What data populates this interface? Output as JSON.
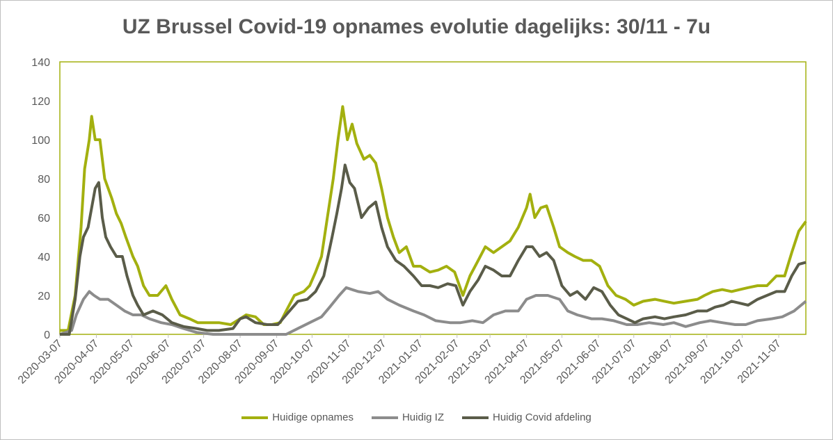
{
  "chart_data": {
    "type": "line",
    "title": "UZ Brussel Covid-19 opnames evolutie dagelijks: 30/11 - 7u",
    "ylim": [
      0,
      140
    ],
    "y_ticks": [
      0,
      20,
      40,
      60,
      80,
      100,
      120,
      140
    ],
    "x_ticks": [
      "2020-03-07",
      "2020-04-07",
      "2020-05-07",
      "2020-06-07",
      "2020-07-07",
      "2020-08-07",
      "2020-09-07",
      "2020-10-07",
      "2020-11-07",
      "2020-12-07",
      "2021-01-07",
      "2021-02-07",
      "2021-03-07",
      "2021-04-07",
      "2021-05-07",
      "2021-06-07",
      "2021-07-07",
      "2021-08-07",
      "2021-09-07",
      "2021-10-07",
      "2021-11-07"
    ],
    "x_range": [
      "2020-03-07",
      "2021-11-30"
    ],
    "legend_position": "bottom",
    "series": [
      {
        "name": "Huidige opnames",
        "color": "#a3b00f",
        "points": [
          [
            "2020-03-07",
            2
          ],
          [
            "2020-03-14",
            2
          ],
          [
            "2020-03-20",
            20
          ],
          [
            "2020-03-25",
            55
          ],
          [
            "2020-03-28",
            85
          ],
          [
            "2020-04-01",
            100
          ],
          [
            "2020-04-03",
            112
          ],
          [
            "2020-04-06",
            100
          ],
          [
            "2020-04-10",
            100
          ],
          [
            "2020-04-14",
            80
          ],
          [
            "2020-04-20",
            70
          ],
          [
            "2020-04-24",
            62
          ],
          [
            "2020-04-28",
            57
          ],
          [
            "2020-05-02",
            50
          ],
          [
            "2020-05-08",
            40
          ],
          [
            "2020-05-12",
            35
          ],
          [
            "2020-05-17",
            25
          ],
          [
            "2020-05-22",
            20
          ],
          [
            "2020-05-29",
            20
          ],
          [
            "2020-06-05",
            25
          ],
          [
            "2020-06-10",
            18
          ],
          [
            "2020-06-17",
            10
          ],
          [
            "2020-06-25",
            8
          ],
          [
            "2020-07-02",
            6
          ],
          [
            "2020-07-10",
            6
          ],
          [
            "2020-07-20",
            6
          ],
          [
            "2020-07-30",
            5
          ],
          [
            "2020-08-07",
            8
          ],
          [
            "2020-08-12",
            10
          ],
          [
            "2020-08-20",
            9
          ],
          [
            "2020-08-27",
            5
          ],
          [
            "2020-09-03",
            5
          ],
          [
            "2020-09-10",
            6
          ],
          [
            "2020-09-15",
            12
          ],
          [
            "2020-09-22",
            20
          ],
          [
            "2020-09-30",
            22
          ],
          [
            "2020-10-05",
            25
          ],
          [
            "2020-10-10",
            32
          ],
          [
            "2020-10-15",
            40
          ],
          [
            "2020-10-20",
            60
          ],
          [
            "2020-10-25",
            80
          ],
          [
            "2020-10-29",
            100
          ],
          [
            "2020-11-02",
            117
          ],
          [
            "2020-11-06",
            100
          ],
          [
            "2020-11-10",
            108
          ],
          [
            "2020-11-14",
            98
          ],
          [
            "2020-11-20",
            90
          ],
          [
            "2020-11-25",
            92
          ],
          [
            "2020-11-30",
            88
          ],
          [
            "2020-12-05",
            75
          ],
          [
            "2020-12-10",
            60
          ],
          [
            "2020-12-15",
            50
          ],
          [
            "2020-12-20",
            42
          ],
          [
            "2020-12-26",
            45
          ],
          [
            "2021-01-01",
            35
          ],
          [
            "2021-01-07",
            35
          ],
          [
            "2021-01-15",
            32
          ],
          [
            "2021-01-22",
            33
          ],
          [
            "2021-01-29",
            35
          ],
          [
            "2021-02-05",
            32
          ],
          [
            "2021-02-12",
            20
          ],
          [
            "2021-02-18",
            30
          ],
          [
            "2021-02-25",
            38
          ],
          [
            "2021-03-03",
            45
          ],
          [
            "2021-03-10",
            42
          ],
          [
            "2021-03-17",
            45
          ],
          [
            "2021-03-24",
            48
          ],
          [
            "2021-03-31",
            55
          ],
          [
            "2021-04-07",
            65
          ],
          [
            "2021-04-10",
            72
          ],
          [
            "2021-04-14",
            60
          ],
          [
            "2021-04-19",
            65
          ],
          [
            "2021-04-24",
            66
          ],
          [
            "2021-04-30",
            55
          ],
          [
            "2021-05-05",
            45
          ],
          [
            "2021-05-12",
            42
          ],
          [
            "2021-05-18",
            40
          ],
          [
            "2021-05-25",
            38
          ],
          [
            "2021-06-01",
            38
          ],
          [
            "2021-06-08",
            35
          ],
          [
            "2021-06-15",
            25
          ],
          [
            "2021-06-22",
            20
          ],
          [
            "2021-06-30",
            18
          ],
          [
            "2021-07-07",
            15
          ],
          [
            "2021-07-15",
            17
          ],
          [
            "2021-07-25",
            18
          ],
          [
            "2021-08-02",
            17
          ],
          [
            "2021-08-10",
            16
          ],
          [
            "2021-08-20",
            17
          ],
          [
            "2021-08-30",
            18
          ],
          [
            "2021-09-05",
            20
          ],
          [
            "2021-09-12",
            22
          ],
          [
            "2021-09-20",
            23
          ],
          [
            "2021-09-28",
            22
          ],
          [
            "2021-10-05",
            23
          ],
          [
            "2021-10-12",
            24
          ],
          [
            "2021-10-20",
            25
          ],
          [
            "2021-10-28",
            25
          ],
          [
            "2021-11-05",
            30
          ],
          [
            "2021-11-12",
            30
          ],
          [
            "2021-11-18",
            42
          ],
          [
            "2021-11-24",
            53
          ],
          [
            "2021-11-30",
            58
          ]
        ]
      },
      {
        "name": "Huidig IZ",
        "color": "#8c8c8c",
        "points": [
          [
            "2020-03-07",
            0
          ],
          [
            "2020-03-17",
            2
          ],
          [
            "2020-03-21",
            10
          ],
          [
            "2020-03-27",
            18
          ],
          [
            "2020-04-01",
            22
          ],
          [
            "2020-04-05",
            20
          ],
          [
            "2020-04-10",
            18
          ],
          [
            "2020-04-17",
            18
          ],
          [
            "2020-04-24",
            15
          ],
          [
            "2020-05-01",
            12
          ],
          [
            "2020-05-08",
            10
          ],
          [
            "2020-05-15",
            10
          ],
          [
            "2020-05-22",
            8
          ],
          [
            "2020-06-01",
            6
          ],
          [
            "2020-06-10",
            5
          ],
          [
            "2020-06-20",
            3
          ],
          [
            "2020-07-01",
            1
          ],
          [
            "2020-07-15",
            0
          ],
          [
            "2020-08-01",
            0
          ],
          [
            "2020-08-15",
            0
          ],
          [
            "2020-09-01",
            0
          ],
          [
            "2020-09-15",
            0
          ],
          [
            "2020-09-25",
            3
          ],
          [
            "2020-10-05",
            6
          ],
          [
            "2020-10-15",
            9
          ],
          [
            "2020-10-22",
            14
          ],
          [
            "2020-10-30",
            20
          ],
          [
            "2020-11-05",
            24
          ],
          [
            "2020-11-15",
            22
          ],
          [
            "2020-11-25",
            21
          ],
          [
            "2020-12-02",
            22
          ],
          [
            "2020-12-10",
            18
          ],
          [
            "2020-12-20",
            15
          ],
          [
            "2021-01-01",
            12
          ],
          [
            "2021-01-10",
            10
          ],
          [
            "2021-01-20",
            7
          ],
          [
            "2021-02-01",
            6
          ],
          [
            "2021-02-10",
            6
          ],
          [
            "2021-02-20",
            7
          ],
          [
            "2021-03-01",
            6
          ],
          [
            "2021-03-10",
            10
          ],
          [
            "2021-03-20",
            12
          ],
          [
            "2021-03-31",
            12
          ],
          [
            "2021-04-07",
            18
          ],
          [
            "2021-04-15",
            20
          ],
          [
            "2021-04-25",
            20
          ],
          [
            "2021-05-05",
            18
          ],
          [
            "2021-05-12",
            12
          ],
          [
            "2021-05-20",
            10
          ],
          [
            "2021-06-01",
            8
          ],
          [
            "2021-06-10",
            8
          ],
          [
            "2021-06-20",
            7
          ],
          [
            "2021-07-01",
            5
          ],
          [
            "2021-07-10",
            5
          ],
          [
            "2021-07-20",
            6
          ],
          [
            "2021-08-01",
            5
          ],
          [
            "2021-08-10",
            6
          ],
          [
            "2021-08-20",
            4
          ],
          [
            "2021-09-01",
            6
          ],
          [
            "2021-09-10",
            7
          ],
          [
            "2021-09-20",
            6
          ],
          [
            "2021-10-01",
            5
          ],
          [
            "2021-10-10",
            5
          ],
          [
            "2021-10-20",
            7
          ],
          [
            "2021-11-01",
            8
          ],
          [
            "2021-11-10",
            9
          ],
          [
            "2021-11-20",
            12
          ],
          [
            "2021-11-30",
            17
          ]
        ]
      },
      {
        "name": "Huidig Covid afdeling",
        "color": "#5a5c49",
        "points": [
          [
            "2020-03-07",
            0
          ],
          [
            "2020-03-15",
            0
          ],
          [
            "2020-03-20",
            18
          ],
          [
            "2020-03-24",
            40
          ],
          [
            "2020-03-27",
            50
          ],
          [
            "2020-03-31",
            55
          ],
          [
            "2020-04-03",
            65
          ],
          [
            "2020-04-06",
            75
          ],
          [
            "2020-04-09",
            78
          ],
          [
            "2020-04-12",
            60
          ],
          [
            "2020-04-15",
            50
          ],
          [
            "2020-04-19",
            45
          ],
          [
            "2020-04-24",
            40
          ],
          [
            "2020-04-29",
            40
          ],
          [
            "2020-05-03",
            30
          ],
          [
            "2020-05-08",
            20
          ],
          [
            "2020-05-12",
            15
          ],
          [
            "2020-05-17",
            10
          ],
          [
            "2020-05-25",
            12
          ],
          [
            "2020-06-02",
            10
          ],
          [
            "2020-06-10",
            6
          ],
          [
            "2020-06-20",
            4
          ],
          [
            "2020-07-01",
            3
          ],
          [
            "2020-07-10",
            2
          ],
          [
            "2020-07-20",
            2
          ],
          [
            "2020-08-01",
            3
          ],
          [
            "2020-08-07",
            8
          ],
          [
            "2020-08-12",
            9
          ],
          [
            "2020-08-20",
            6
          ],
          [
            "2020-08-30",
            5
          ],
          [
            "2020-09-08",
            5
          ],
          [
            "2020-09-15",
            10
          ],
          [
            "2020-09-25",
            17
          ],
          [
            "2020-10-03",
            18
          ],
          [
            "2020-10-10",
            22
          ],
          [
            "2020-10-17",
            30
          ],
          [
            "2020-10-24",
            50
          ],
          [
            "2020-10-28",
            62
          ],
          [
            "2020-11-01",
            75
          ],
          [
            "2020-11-04",
            87
          ],
          [
            "2020-11-08",
            78
          ],
          [
            "2020-11-12",
            75
          ],
          [
            "2020-11-18",
            60
          ],
          [
            "2020-11-24",
            65
          ],
          [
            "2020-11-30",
            68
          ],
          [
            "2020-12-05",
            55
          ],
          [
            "2020-12-10",
            45
          ],
          [
            "2020-12-17",
            38
          ],
          [
            "2020-12-24",
            35
          ],
          [
            "2021-01-01",
            30
          ],
          [
            "2021-01-08",
            25
          ],
          [
            "2021-01-15",
            25
          ],
          [
            "2021-01-22",
            24
          ],
          [
            "2021-01-30",
            26
          ],
          [
            "2021-02-06",
            25
          ],
          [
            "2021-02-12",
            15
          ],
          [
            "2021-02-18",
            22
          ],
          [
            "2021-02-25",
            28
          ],
          [
            "2021-03-03",
            35
          ],
          [
            "2021-03-10",
            33
          ],
          [
            "2021-03-17",
            30
          ],
          [
            "2021-03-24",
            30
          ],
          [
            "2021-03-31",
            38
          ],
          [
            "2021-04-07",
            45
          ],
          [
            "2021-04-12",
            45
          ],
          [
            "2021-04-18",
            40
          ],
          [
            "2021-04-24",
            42
          ],
          [
            "2021-04-30",
            38
          ],
          [
            "2021-05-07",
            25
          ],
          [
            "2021-05-14",
            20
          ],
          [
            "2021-05-20",
            22
          ],
          [
            "2021-05-27",
            18
          ],
          [
            "2021-06-03",
            24
          ],
          [
            "2021-06-10",
            22
          ],
          [
            "2021-06-17",
            15
          ],
          [
            "2021-06-24",
            10
          ],
          [
            "2021-07-01",
            8
          ],
          [
            "2021-07-08",
            6
          ],
          [
            "2021-07-15",
            8
          ],
          [
            "2021-07-25",
            9
          ],
          [
            "2021-08-02",
            8
          ],
          [
            "2021-08-10",
            9
          ],
          [
            "2021-08-20",
            10
          ],
          [
            "2021-08-30",
            12
          ],
          [
            "2021-09-07",
            12
          ],
          [
            "2021-09-14",
            14
          ],
          [
            "2021-09-21",
            15
          ],
          [
            "2021-09-28",
            17
          ],
          [
            "2021-10-05",
            16
          ],
          [
            "2021-10-12",
            15
          ],
          [
            "2021-10-20",
            18
          ],
          [
            "2021-10-28",
            20
          ],
          [
            "2021-11-05",
            22
          ],
          [
            "2021-11-12",
            22
          ],
          [
            "2021-11-18",
            30
          ],
          [
            "2021-11-24",
            36
          ],
          [
            "2021-11-30",
            37
          ]
        ]
      }
    ]
  }
}
